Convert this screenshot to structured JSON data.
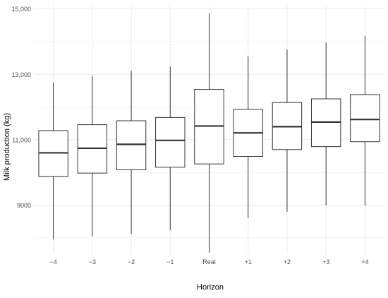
{
  "chart_data": {
    "type": "box",
    "title": "",
    "xlabel": "Horizon",
    "ylabel": "Milk production (kg)",
    "ylim": [
      7500,
      15100
    ],
    "y_ticks": [
      {
        "value": 9000,
        "label": "9000"
      },
      {
        "value": 11000,
        "label": "11,000"
      },
      {
        "value": 13000,
        "label": "13,000"
      },
      {
        "value": 15000,
        "label": "15,000"
      }
    ],
    "categories": [
      "−4",
      "−3",
      "−2",
      "−1",
      "Real",
      "+1",
      "+2",
      "+3",
      "+4"
    ],
    "boxes": [
      {
        "min": 7950,
        "q1": 9880,
        "median": 10600,
        "q3": 11280,
        "max": 12750
      },
      {
        "min": 8050,
        "q1": 9980,
        "median": 10740,
        "q3": 11460,
        "max": 12950
      },
      {
        "min": 8120,
        "q1": 10080,
        "median": 10860,
        "q3": 11580,
        "max": 13100
      },
      {
        "min": 8230,
        "q1": 10160,
        "median": 10980,
        "q3": 11680,
        "max": 13240
      },
      {
        "min": 7550,
        "q1": 10260,
        "median": 11420,
        "q3": 12540,
        "max": 14860
      },
      {
        "min": 8600,
        "q1": 10490,
        "median": 11210,
        "q3": 11930,
        "max": 13550
      },
      {
        "min": 8800,
        "q1": 10700,
        "median": 11400,
        "q3": 12140,
        "max": 13760
      },
      {
        "min": 9000,
        "q1": 10790,
        "median": 11540,
        "q3": 12250,
        "max": 13970
      },
      {
        "min": 8980,
        "q1": 10940,
        "median": 11620,
        "q3": 12380,
        "max": 14180
      }
    ],
    "grid": true,
    "colors": {
      "box_fill": "#ffffff",
      "box_stroke": "#333333",
      "median": "#333333",
      "grid": "#ebebeb",
      "text": "#4d4d4d",
      "axis_title": "#000000"
    }
  }
}
